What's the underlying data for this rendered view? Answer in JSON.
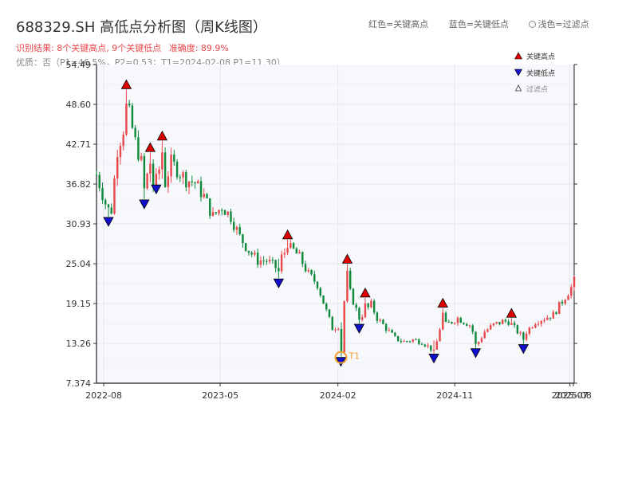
{
  "title": "688329.SH 高低点分析图（周K线图）",
  "subtitle_result": "识别结果: 8个关键高点, 9个关键低点",
  "subtitle_accuracy": "准确度: 89.9%",
  "subtitle_quality": "优质：否（P1=46.5%，P2=0.53；T1=2024-02-08 P1=11.30）",
  "top_legend": {
    "red": "红色=关键高点",
    "blue": "蓝色=关键低点",
    "light": "浅色=过滤点"
  },
  "colors": {
    "up": "#e8474b",
    "down": "#0f8a3c",
    "high_marker": "#e00000",
    "low_marker": "#1010cc",
    "t1_marker": "#f0a030",
    "plot_bg": "#f7f8fb",
    "grid": "#e3e6ee"
  },
  "chart_data": {
    "type": "candlestick",
    "xlim": [
      "2022-07-15",
      "2025-08-08"
    ],
    "ylim": [
      7.374,
      54.49
    ],
    "y_ticks": [
      "7.374",
      "13.26",
      "19.15",
      "25.04",
      "30.93",
      "36.82",
      "42.71",
      "48.60",
      "54.49"
    ],
    "x_ticks": [
      "2022-08",
      "2023-05",
      "2024-02",
      "2024-11",
      "2025-07",
      "2025-08"
    ],
    "legend": {
      "position": "top-right",
      "entries": [
        "关键高点",
        "关键低点",
        "过滤点"
      ]
    },
    "t1_label": "T1",
    "anchors": [
      [
        "2022-07-15",
        38.2
      ],
      [
        "2022-08-05",
        34.0
      ],
      [
        "2022-08-19",
        33.0
      ],
      [
        "2022-09-02",
        42.0
      ],
      [
        "2022-09-16",
        45.0
      ],
      [
        "2022-09-30",
        47.0
      ],
      [
        "2022-10-14",
        43.0
      ],
      [
        "2022-10-28",
        40.0
      ],
      [
        "2022-11-11",
        38.0
      ],
      [
        "2022-11-25",
        36.5
      ],
      [
        "2022-12-09",
        39.0
      ],
      [
        "2022-12-23",
        37.0
      ],
      [
        "2023-01-06",
        40.0
      ],
      [
        "2023-01-20",
        39.0
      ],
      [
        "2023-02-10",
        37.5
      ],
      [
        "2023-03-03",
        37.0
      ],
      [
        "2023-03-24",
        35.0
      ],
      [
        "2023-04-14",
        32.0
      ],
      [
        "2023-05-05",
        33.5
      ],
      [
        "2023-05-26",
        32.0
      ],
      [
        "2023-06-16",
        29.0
      ],
      [
        "2023-07-07",
        27.0
      ],
      [
        "2023-07-28",
        25.5
      ],
      [
        "2023-08-18",
        25.5
      ],
      [
        "2023-09-08",
        24.5
      ],
      [
        "2023-09-22",
        26.0
      ],
      [
        "2023-10-06",
        27.5
      ],
      [
        "2023-10-20",
        27.0
      ],
      [
        "2023-11-03",
        26.0
      ],
      [
        "2023-11-24",
        23.5
      ],
      [
        "2023-12-15",
        22.0
      ],
      [
        "2024-01-05",
        18.0
      ],
      [
        "2024-01-19",
        15.5
      ],
      [
        "2024-02-08",
        16.0
      ],
      [
        "2024-02-16",
        19.5
      ],
      [
        "2024-02-23",
        22.0
      ],
      [
        "2024-03-08",
        19.5
      ],
      [
        "2024-03-22",
        17.0
      ],
      [
        "2024-04-05",
        18.0
      ],
      [
        "2024-04-19",
        19.0
      ],
      [
        "2024-05-03",
        17.0
      ],
      [
        "2024-05-24",
        15.5
      ],
      [
        "2024-06-14",
        14.0
      ],
      [
        "2024-07-05",
        13.5
      ],
      [
        "2024-07-26",
        13.8
      ],
      [
        "2024-08-16",
        13.5
      ],
      [
        "2024-09-06",
        12.5
      ],
      [
        "2024-09-20",
        13.5
      ],
      [
        "2024-09-27",
        15.5
      ],
      [
        "2024-10-11",
        16.0
      ],
      [
        "2024-10-25",
        16.5
      ],
      [
        "2024-11-08",
        17.0
      ],
      [
        "2024-11-22",
        16.5
      ],
      [
        "2024-12-06",
        16.0
      ],
      [
        "2024-12-20",
        14.0
      ],
      [
        "2024-12-27",
        13.5
      ],
      [
        "2025-01-10",
        15.0
      ],
      [
        "2025-01-31",
        16.0
      ],
      [
        "2025-02-21",
        16.5
      ],
      [
        "2025-03-07",
        16.5
      ],
      [
        "2025-03-21",
        15.5
      ],
      [
        "2025-04-04",
        14.5
      ],
      [
        "2025-04-18",
        15.0
      ],
      [
        "2025-05-09",
        16.5
      ],
      [
        "2025-05-30",
        17.0
      ],
      [
        "2025-06-20",
        17.5
      ],
      [
        "2025-07-11",
        19.5
      ],
      [
        "2025-08-01",
        21.5
      ],
      [
        "2025-08-08",
        22.5
      ]
    ],
    "key_highs": [
      {
        "date": "2022-09-23",
        "value": 50.8
      },
      {
        "date": "2022-11-18",
        "value": 41.5
      },
      {
        "date": "2022-12-16",
        "value": 43.2
      },
      {
        "date": "2023-10-06",
        "value": 28.6
      },
      {
        "date": "2024-02-23",
        "value": 25.0
      },
      {
        "date": "2024-04-05",
        "value": 20.0
      },
      {
        "date": "2024-10-04",
        "value": 18.5
      },
      {
        "date": "2025-03-14",
        "value": 17.0
      }
    ],
    "key_lows": [
      {
        "date": "2022-08-12",
        "value": 32.0
      },
      {
        "date": "2022-11-04",
        "value": 34.6
      },
      {
        "date": "2022-12-02",
        "value": 36.8
      },
      {
        "date": "2023-09-15",
        "value": 22.9
      },
      {
        "date": "2024-02-08",
        "value": 11.3
      },
      {
        "date": "2024-03-22",
        "value": 16.2
      },
      {
        "date": "2024-09-13",
        "value": 11.8
      },
      {
        "date": "2024-12-20",
        "value": 12.6
      },
      {
        "date": "2025-04-11",
        "value": 13.2
      }
    ],
    "t1": {
      "date": "2024-02-08",
      "value": 11.3
    }
  }
}
